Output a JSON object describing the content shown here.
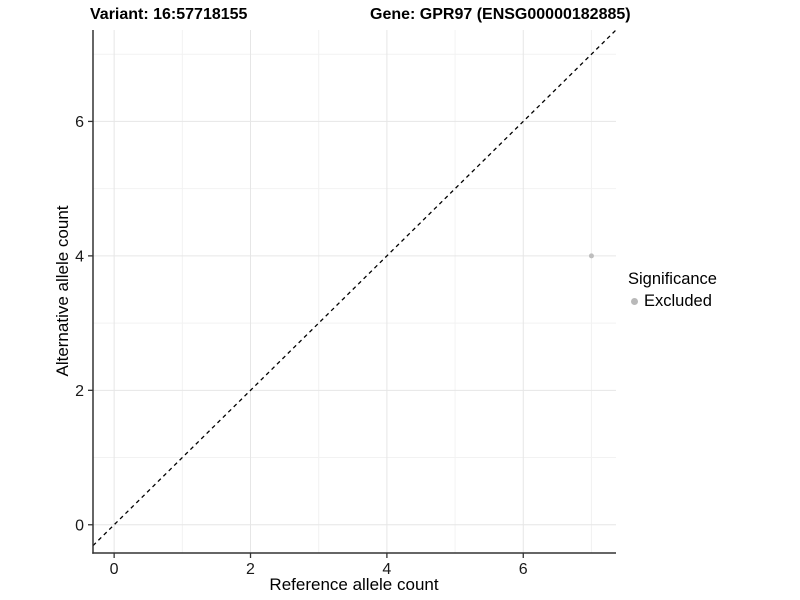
{
  "chart_data": {
    "type": "scatter",
    "title_left": "Variant: 16:57718155",
    "title_right": "Gene: GPR97 (ENSG00000182885)",
    "xlabel": "Reference allele count",
    "ylabel": "Alternative allele count",
    "xlim": [
      -0.31,
      7.36
    ],
    "ylim": [
      -0.42,
      7.36
    ],
    "x_ticks": [
      0,
      2,
      4,
      6
    ],
    "y_ticks": [
      0,
      2,
      4,
      6
    ],
    "x_minor_ticks": [
      1,
      3,
      5,
      7
    ],
    "y_minor_ticks": [
      1,
      3,
      5,
      7
    ],
    "grid": "major+minor",
    "identity_line": {
      "slope": 1,
      "intercept": 0,
      "style": "dashed",
      "color": "#000000"
    },
    "series": [
      {
        "name": "Excluded",
        "color": "#bebebe",
        "points": [
          [
            7,
            4
          ]
        ]
      }
    ],
    "legend": {
      "title": "Significance",
      "position": "right",
      "items": [
        {
          "label": "Excluded",
          "color": "#b9b9b9"
        }
      ]
    }
  },
  "colors": {
    "background": "#ffffff",
    "axis_line": "#333333",
    "grid_major": "#e6e6e6",
    "grid_minor": "#f2f2f2",
    "tick_text": "#1a1a1a",
    "point": "#bebebe"
  }
}
